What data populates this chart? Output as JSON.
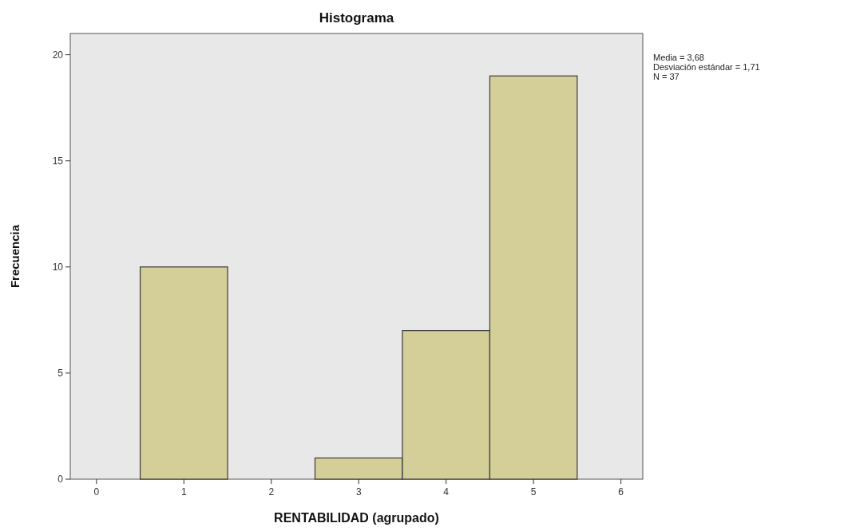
{
  "chart_data": {
    "type": "histogram",
    "title": "Histograma",
    "xlabel": "RENTABILIDAD (agrupado)",
    "ylabel": "Frecuencia",
    "bins": [
      0.5,
      1.5,
      2.5,
      3.5,
      4.5,
      5.5
    ],
    "values": [
      10,
      0,
      1,
      7,
      19
    ],
    "color": "#d4cf98",
    "xlim": [
      -0.3,
      6.25
    ],
    "xticks": [
      0,
      1,
      2,
      3,
      4,
      5,
      6
    ],
    "ylim": [
      0,
      21
    ],
    "yticks": [
      0,
      5,
      10,
      15,
      20
    ],
    "annotations": [
      "Media = 3,68",
      "Desviación estándar = 1,71",
      "N = 37"
    ]
  }
}
